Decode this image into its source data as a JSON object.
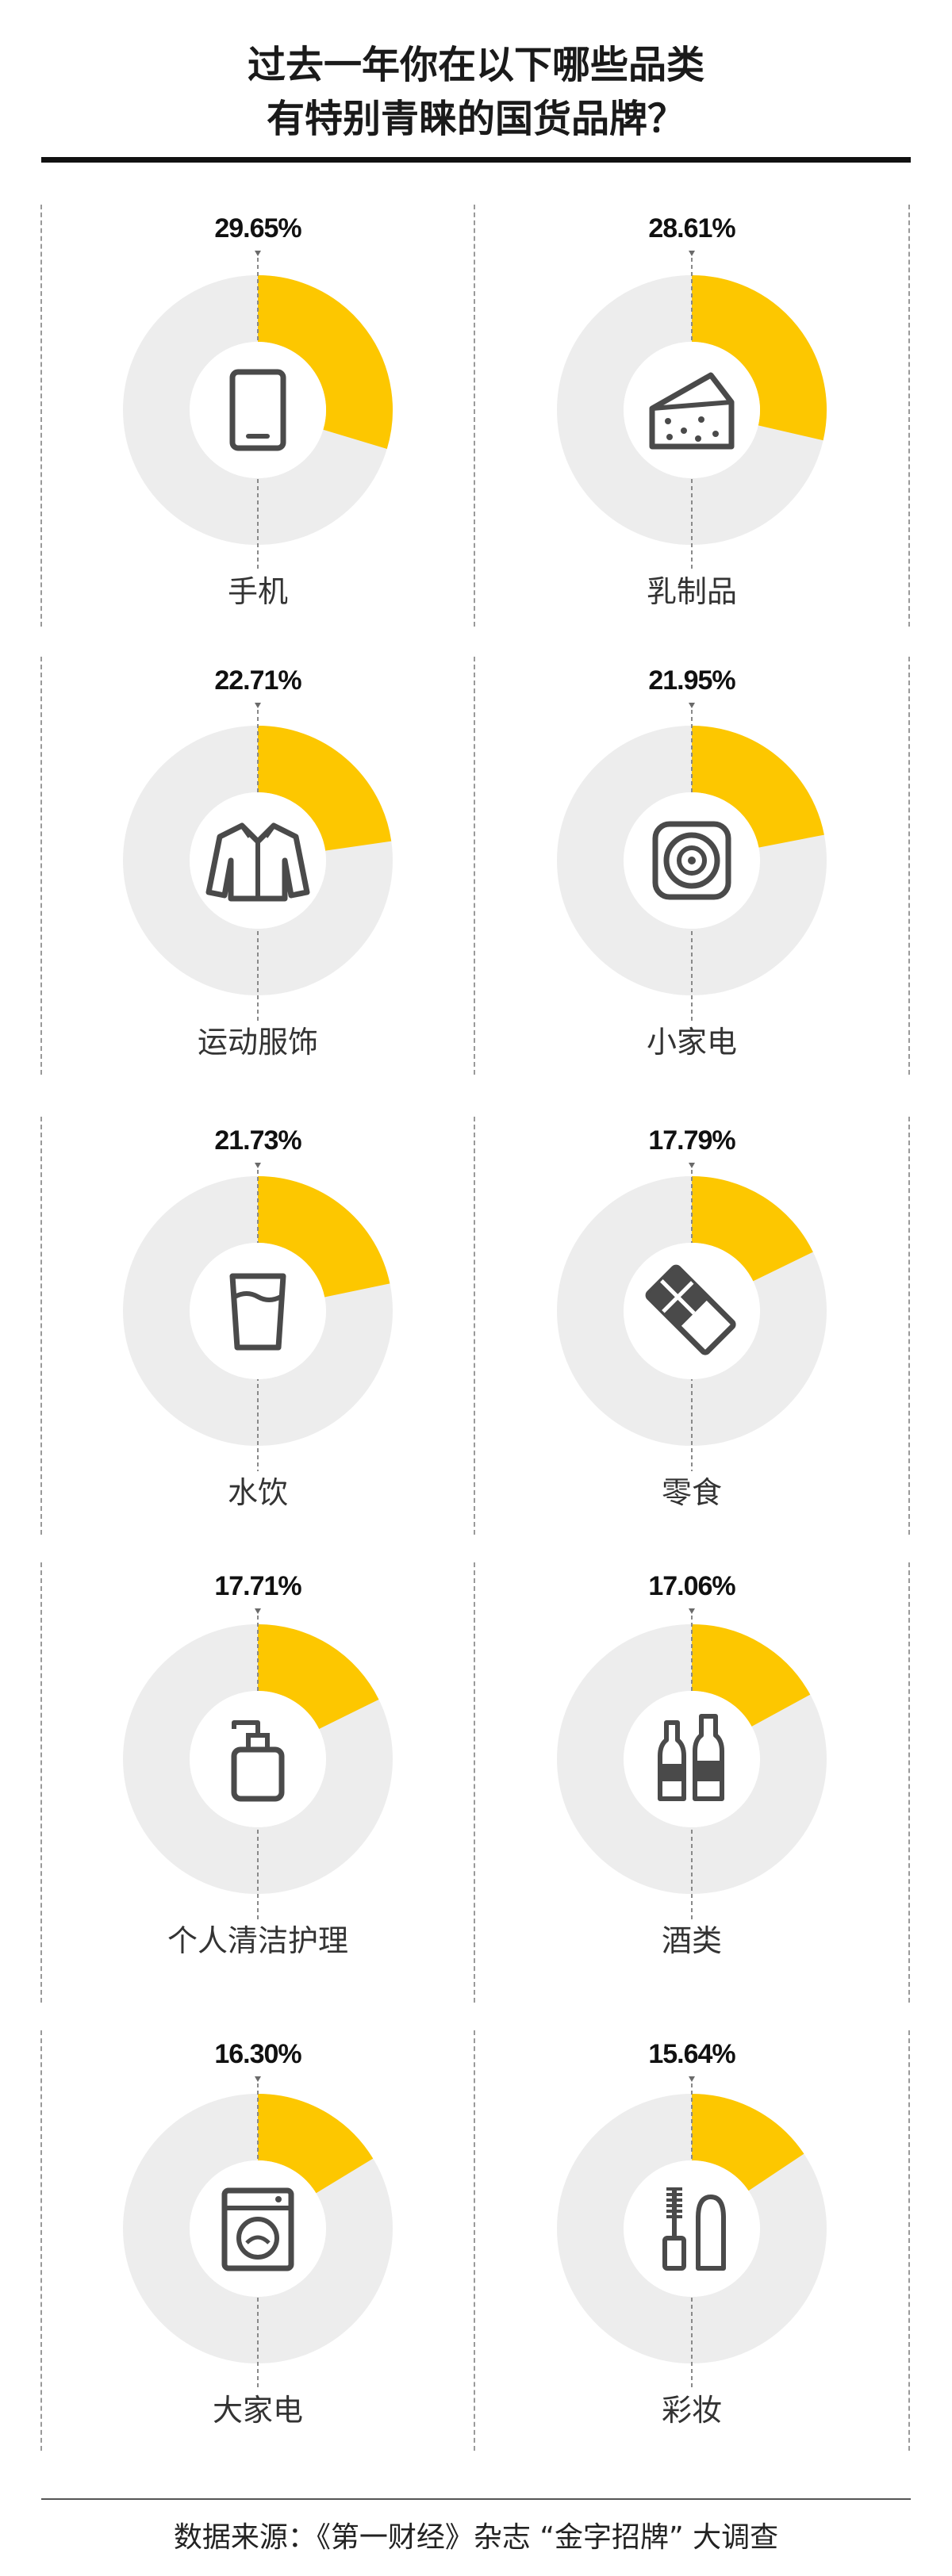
{
  "title": {
    "line1": "过去一年你在以下哪些品类",
    "line2": "有特别青睐的国货品牌？"
  },
  "source": "数据来源：《第一财经》杂志 “金字招牌” 大调查",
  "colors": {
    "accent": "#FDC700",
    "track": "#EDEDED",
    "icon": "#4A4A4A"
  },
  "chart_data": {
    "type": "pie",
    "style": "donut-grid",
    "unit": "%",
    "items": [
      {
        "category": "手机",
        "value": 29.65,
        "label": "29.65%",
        "icon": "phone-icon"
      },
      {
        "category": "乳制品",
        "value": 28.61,
        "label": "28.61%",
        "icon": "cheese-icon"
      },
      {
        "category": "运动服饰",
        "value": 22.71,
        "label": "22.71%",
        "icon": "jacket-icon"
      },
      {
        "category": "小家电",
        "value": 21.95,
        "label": "21.95%",
        "icon": "speaker-icon"
      },
      {
        "category": "水饮",
        "value": 21.73,
        "label": "21.73%",
        "icon": "glass-icon"
      },
      {
        "category": "零食",
        "value": 17.79,
        "label": "17.79%",
        "icon": "chocolate-icon"
      },
      {
        "category": "个人清洁护理",
        "value": 17.71,
        "label": "17.71%",
        "icon": "pump-bottle-icon"
      },
      {
        "category": "酒类",
        "value": 17.06,
        "label": "17.06%",
        "icon": "bottles-icon"
      },
      {
        "category": "大家电",
        "value": 16.3,
        "label": "16.30%",
        "icon": "washing-machine-icon"
      },
      {
        "category": "彩妆",
        "value": 15.64,
        "label": "15.64%",
        "icon": "mascara-icon"
      }
    ]
  }
}
